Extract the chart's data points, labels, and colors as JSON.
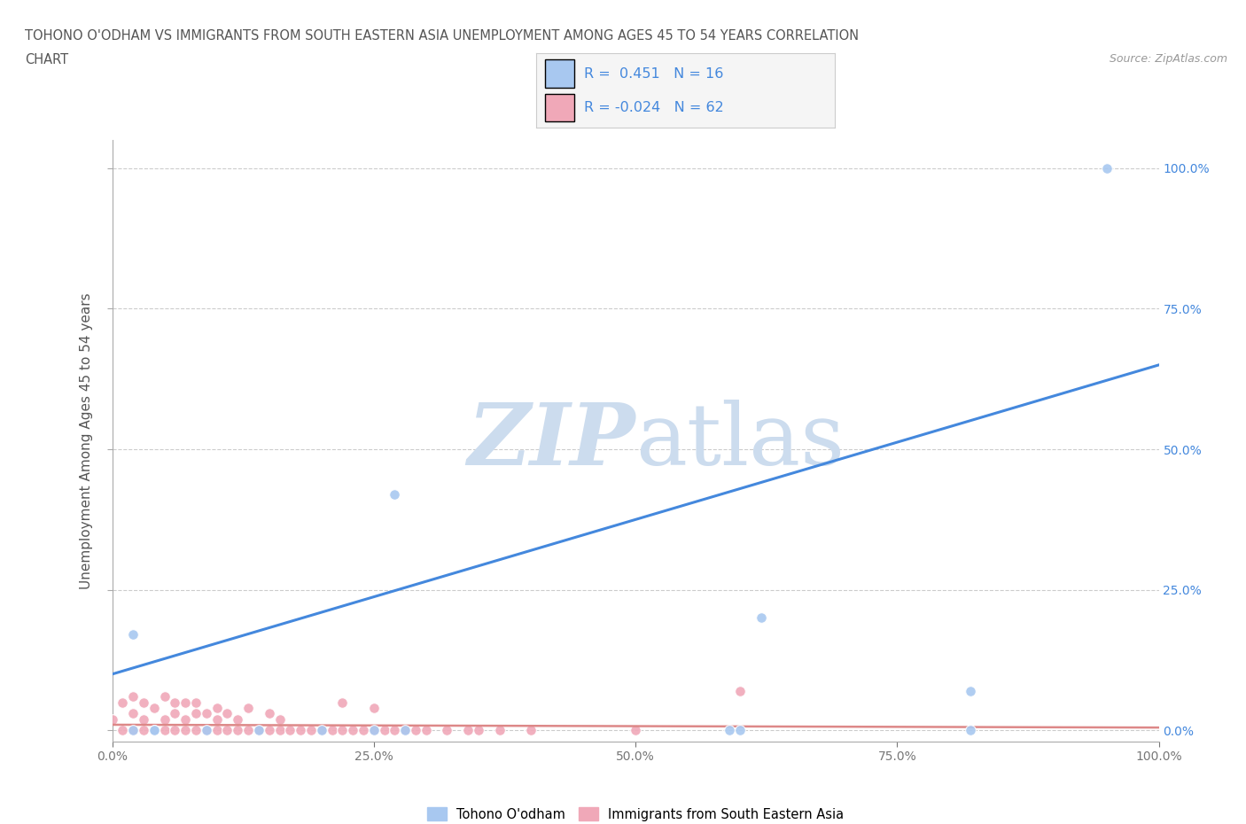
{
  "title_line1": "TOHONO O'ODHAM VS IMMIGRANTS FROM SOUTH EASTERN ASIA UNEMPLOYMENT AMONG AGES 45 TO 54 YEARS CORRELATION",
  "title_line2": "CHART",
  "source_text": "Source: ZipAtlas.com",
  "ylabel": "Unemployment Among Ages 45 to 54 years",
  "xlim": [
    0.0,
    1.0
  ],
  "ylim": [
    -0.02,
    1.05
  ],
  "xtick_positions": [
    0.0,
    0.25,
    0.5,
    0.75,
    1.0
  ],
  "xtick_labels": [
    "0.0%",
    "25.0%",
    "50.0%",
    "75.0%",
    "100.0%"
  ],
  "ytick_positions": [
    0.0,
    0.25,
    0.5,
    0.75,
    1.0
  ],
  "right_ytick_labels": [
    "0.0%",
    "25.0%",
    "50.0%",
    "75.0%",
    "100.0%"
  ],
  "background_color": "#ffffff",
  "grid_color": "#cccccc",
  "watermark_color": "#ccdcee",
  "legend_R1": "0.451",
  "legend_N1": "16",
  "legend_R2": "-0.024",
  "legend_N2": "62",
  "blue_color": "#a8c8f0",
  "pink_color": "#f0a8b8",
  "trendline_blue": "#4488dd",
  "trendline_pink": "#dd8888",
  "trendline_blue_x0": 0.0,
  "trendline_blue_y0": 0.1,
  "trendline_blue_x1": 1.0,
  "trendline_blue_y1": 0.65,
  "trendline_pink_x0": 0.0,
  "trendline_pink_y0": 0.01,
  "trendline_pink_x1": 1.0,
  "trendline_pink_y1": 0.005,
  "tohono_x": [
    0.02,
    0.04,
    0.09,
    0.14,
    0.2,
    0.27,
    0.59,
    0.62,
    0.82,
    0.95,
    0.02,
    0.04,
    0.25,
    0.28,
    0.6,
    0.82
  ],
  "tohono_y": [
    0.17,
    0.0,
    0.0,
    0.0,
    0.0,
    0.42,
    0.0,
    0.2,
    0.07,
    1.0,
    0.0,
    0.0,
    0.0,
    0.0,
    0.0,
    0.0
  ],
  "immigrants_x": [
    0.0,
    0.01,
    0.01,
    0.02,
    0.02,
    0.02,
    0.03,
    0.03,
    0.03,
    0.04,
    0.04,
    0.05,
    0.05,
    0.05,
    0.06,
    0.06,
    0.06,
    0.07,
    0.07,
    0.07,
    0.08,
    0.08,
    0.08,
    0.09,
    0.09,
    0.1,
    0.1,
    0.1,
    0.11,
    0.11,
    0.12,
    0.12,
    0.13,
    0.13,
    0.14,
    0.15,
    0.15,
    0.16,
    0.16,
    0.17,
    0.18,
    0.19,
    0.2,
    0.21,
    0.22,
    0.22,
    0.23,
    0.24,
    0.25,
    0.25,
    0.26,
    0.27,
    0.28,
    0.29,
    0.3,
    0.32,
    0.34,
    0.35,
    0.37,
    0.4,
    0.5,
    0.6
  ],
  "immigrants_y": [
    0.02,
    0.0,
    0.05,
    0.0,
    0.03,
    0.06,
    0.0,
    0.02,
    0.05,
    0.0,
    0.04,
    0.0,
    0.02,
    0.06,
    0.0,
    0.03,
    0.05,
    0.0,
    0.02,
    0.05,
    0.0,
    0.03,
    0.05,
    0.0,
    0.03,
    0.0,
    0.02,
    0.04,
    0.0,
    0.03,
    0.0,
    0.02,
    0.0,
    0.04,
    0.0,
    0.0,
    0.03,
    0.0,
    0.02,
    0.0,
    0.0,
    0.0,
    0.0,
    0.0,
    0.0,
    0.05,
    0.0,
    0.0,
    0.0,
    0.04,
    0.0,
    0.0,
    0.0,
    0.0,
    0.0,
    0.0,
    0.0,
    0.0,
    0.0,
    0.0,
    0.0,
    0.07
  ],
  "marker_size": 70
}
